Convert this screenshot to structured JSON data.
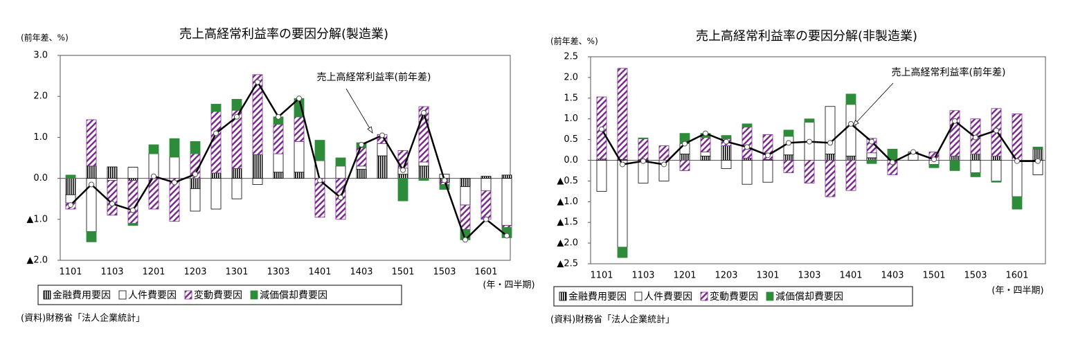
{
  "chart_data": [
    {
      "type": "bar",
      "stacked": true,
      "title": "売上高経常利益率の要因分解(製造業)",
      "ylabel": "(前年差、%)",
      "xlabel": "(年・四半期)",
      "source": "(資料)財務省「法人企業統計」",
      "annotation": "売上高経常利益率(前年差)",
      "categories": [
        "1101",
        null,
        "1103",
        null,
        "1201",
        null,
        "1203",
        null,
        "1301",
        null,
        "1303",
        null,
        "1401",
        null,
        "1403",
        null,
        "1501",
        null,
        "1503",
        null,
        "1601",
        null
      ],
      "ylim": [
        -2,
        3
      ],
      "yticks": [
        {
          "value": 3,
          "label": "3.0"
        },
        {
          "value": 2,
          "label": "2.0"
        },
        {
          "value": 1,
          "label": "1.0"
        },
        {
          "value": 0,
          "label": "0.0"
        },
        {
          "value": -1,
          "label": "▲1.0"
        },
        {
          "value": -2,
          "label": "▲2.0"
        }
      ],
      "series": [
        {
          "name": "金融費用要因",
          "color": "#000000",
          "pattern": "stripes",
          "values": [
            -0.4,
            0.3,
            0.28,
            -0.05,
            0,
            0,
            -0.25,
            0.13,
            0.24,
            0.58,
            0.15,
            0.15,
            0,
            0,
            0.22,
            0.55,
            0.1,
            0.3,
            -0.1,
            -0.2,
            0.05,
            0.08
          ]
        },
        {
          "name": "人件費要因",
          "color": "#ffffff",
          "values": [
            -0.2,
            -1.3,
            -0.05,
            0.27,
            0.6,
            0.52,
            -0.55,
            -0.75,
            -0.5,
            -0.15,
            0.45,
            0.75,
            0.43,
            0.3,
            0.08,
            0.3,
            0.15,
            0.1,
            0.1,
            -0.45,
            -0.3,
            -1.15
          ]
        },
        {
          "name": "変動費要因",
          "color": "#7b2c8f",
          "pattern": "hatch",
          "values": [
            -0.15,
            1.13,
            -0.85,
            -1.05,
            -0.75,
            -1.05,
            0.6,
            1.5,
            1.42,
            1.95,
            0.72,
            0.6,
            -0.95,
            -1,
            0.45,
            0.22,
            0.43,
            1.35,
            -0.05,
            -0.6,
            -0.7,
            -0.05
          ]
        },
        {
          "name": "減価償却費要因",
          "color": "#2e8b3a",
          "values": [
            0.08,
            -0.25,
            0,
            -0.05,
            0.22,
            0.45,
            0.3,
            0.18,
            0.27,
            0,
            0.18,
            0.45,
            0.5,
            0.2,
            0.12,
            0,
            -0.55,
            -0.05,
            -0.12,
            -0.25,
            0,
            -0.25
          ]
        },
        {
          "name": "売上高経常利益率(前年差)",
          "type": "line",
          "color": "#000000",
          "values": [
            -0.65,
            -0.15,
            -0.62,
            -0.78,
            0.05,
            -0.1,
            0.1,
            1.1,
            1.5,
            2.35,
            1.5,
            1.95,
            -0.05,
            -0.47,
            0.82,
            1.05,
            0.2,
            1.6,
            -0.05,
            -1.5,
            -1,
            -1.4
          ]
        }
      ]
    },
    {
      "type": "bar",
      "stacked": true,
      "title": "売上高経常利益率の要因分解(非製造業)",
      "ylabel": "(前年差、%)",
      "xlabel": "(年・四半期)",
      "source": "(資料)財務省「法人企業統計」",
      "annotation": "売上高経常利益率(前年差)",
      "categories": [
        "1101",
        null,
        "1103",
        null,
        "1201",
        null,
        "1203",
        null,
        "1301",
        null,
        "1303",
        null,
        "1401",
        null,
        "1403",
        null,
        "1501",
        null,
        "1503",
        null,
        "1601",
        null
      ],
      "ylim": [
        -2.5,
        2.5
      ],
      "yticks": [
        2.5,
        {
          "value": 2,
          "label": "2.0"
        },
        1.5,
        {
          "value": 1,
          "label": "1.0"
        },
        0.5,
        {
          "value": 0,
          "label": "0.0"
        },
        {
          "value": -0.5,
          "label": "▲0.5"
        },
        {
          "value": -1,
          "label": "▲1.0"
        },
        {
          "value": -1.5,
          "label": "▲1.5"
        },
        {
          "value": -2,
          "label": "▲2.0"
        },
        {
          "value": -2.5,
          "label": "▲2.5"
        }
      ],
      "series": [
        {
          "name": "金融費用要因",
          "color": "#000000",
          "pattern": "stripes",
          "values": [
            0.03,
            0.02,
            0.02,
            0,
            0.15,
            0.1,
            0.35,
            0.05,
            0.02,
            0.13,
            0,
            0.15,
            0.1,
            0.06,
            0.02,
            0,
            0,
            0.1,
            0.15,
            0.1,
            0,
            0.27
          ]
        },
        {
          "name": "人件費要因",
          "color": "#ffffff",
          "values": [
            -0.75,
            -2.1,
            -0.55,
            -0.5,
            0.25,
            0.1,
            -0.2,
            -0.58,
            -0.53,
            0.45,
            0.92,
            1.15,
            1.25,
            0.12,
            0,
            0.2,
            -0.1,
            0,
            -0.3,
            -0.5,
            -0.88,
            -0.35
          ]
        },
        {
          "name": "変動費要因",
          "color": "#7b2c8f",
          "pattern": "hatch",
          "values": [
            1.5,
            2.2,
            0.5,
            0.35,
            -0.25,
            0.35,
            0.17,
            0.75,
            0.6,
            -0.3,
            -0.55,
            -0.88,
            -0.73,
            0.35,
            -0.35,
            0,
            0.2,
            1.1,
            0.85,
            1.15,
            1.12,
            0
          ]
        },
        {
          "name": "減価償却費要因",
          "color": "#2e8b3a",
          "values": [
            0,
            -0.25,
            0.02,
            0,
            0.25,
            0.1,
            0.08,
            0.08,
            0,
            0.15,
            0.08,
            0,
            0.25,
            -0.08,
            0.25,
            0,
            -0.08,
            -0.25,
            -0.1,
            -0.03,
            -0.3,
            0.05
          ]
        },
        {
          "name": "売上高経常利益率(前年差)",
          "type": "line",
          "color": "#000000",
          "values": [
            0.75,
            -0.1,
            -0.02,
            -0.1,
            0.4,
            0.65,
            0.45,
            0.32,
            0.12,
            0.42,
            0.45,
            0.42,
            0.88,
            0.45,
            -0.05,
            0.2,
            0.02,
            0.95,
            0.55,
            0.72,
            -0.02,
            -0.02
          ]
        }
      ]
    }
  ]
}
